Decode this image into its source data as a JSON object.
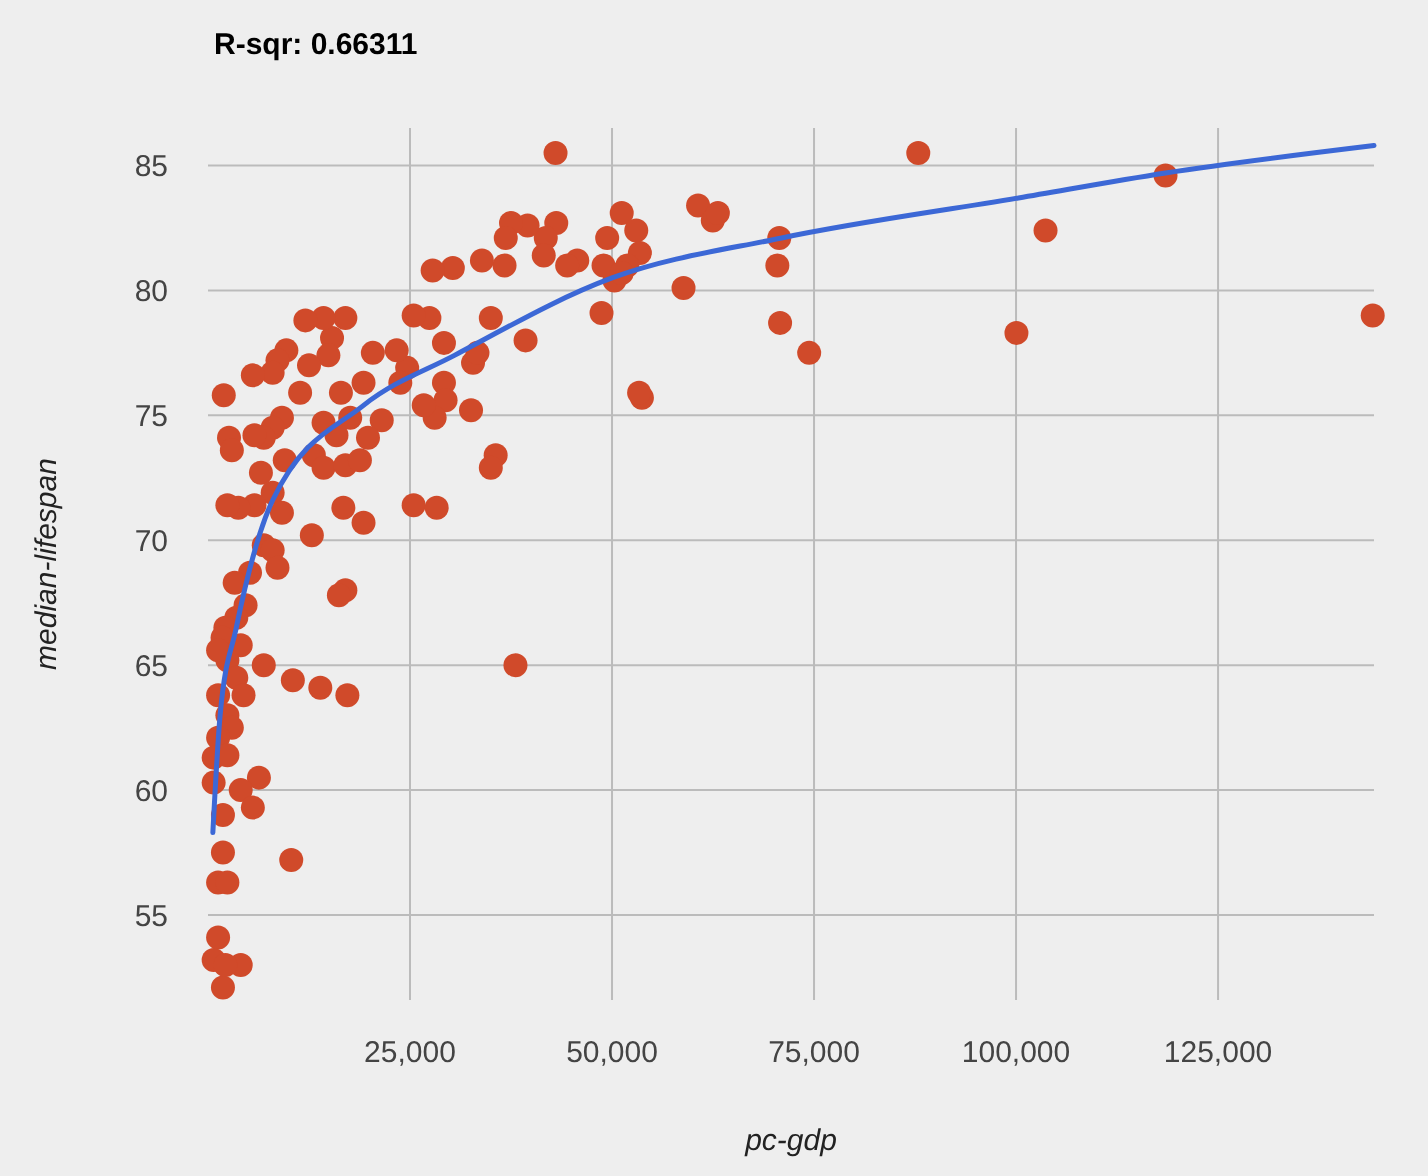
{
  "chart_data": {
    "type": "scatter",
    "title": "R-sqr: 0.66311",
    "xlabel": "pc-gdp",
    "ylabel": "median-lifespan",
    "xlim": [
      0,
      144300
    ],
    "ylim": [
      51.6,
      86.5
    ],
    "xticks": [
      {
        "value": 25000,
        "label": "25,000"
      },
      {
        "value": 50000,
        "label": "50,000"
      },
      {
        "value": 75000,
        "label": "75,000"
      },
      {
        "value": 100000,
        "label": "100,000"
      },
      {
        "value": 125000,
        "label": "125,000"
      }
    ],
    "yticks": [
      55,
      60,
      65,
      70,
      75,
      80,
      85
    ],
    "grid": true,
    "series": [
      {
        "color": "#d04a2a",
        "marker": "circle",
        "x": [
          144140,
          118500,
          103650,
          100050,
          87900,
          74400,
          70800,
          70460,
          70700,
          58850,
          60650,
          62470,
          63100,
          53700,
          53350,
          43010,
          51200,
          53000,
          53450,
          51900,
          50300,
          49400,
          48950,
          48700,
          51200,
          45700,
          44450,
          43100,
          41800,
          41550,
          39550,
          37500,
          36850,
          36700,
          33900,
          39300,
          35000,
          32800,
          33350,
          32550,
          35600,
          35000,
          38050,
          30300,
          27800,
          27400,
          25450,
          24650,
          29200,
          29200,
          29400,
          28050,
          26700,
          25450,
          28300,
          23350,
          20400,
          23800,
          21500,
          19800,
          19250,
          17000,
          15350,
          14900,
          14300,
          12050,
          12500,
          16450,
          17600,
          15900,
          14300,
          13100,
          14300,
          17000,
          18800,
          16750,
          19250,
          17000,
          16200,
          12850,
          10500,
          13900,
          17250,
          10300,
          11400,
          9700,
          8600,
          8000,
          5550,
          9150,
          8000,
          9500,
          6900,
          5750,
          2600,
          2950,
          1950,
          6550,
          8000,
          9150,
          5750,
          3750,
          2400,
          6900,
          8000,
          8600,
          5200,
          3300,
          4650,
          3500,
          2150,
          1800,
          6900,
          4050,
          2400,
          1250,
          3500,
          4400,
          1250,
          2400,
          2950,
          1250,
          700,
          2400,
          6300,
          4050,
          700,
          5550,
          1850,
          1850,
          1250,
          2400,
          1250,
          700,
          4050,
          1850,
          2150
        ],
        "values": [
          79.0,
          84.6,
          82.4,
          78.3,
          85.5,
          77.5,
          78.7,
          81.0,
          82.1,
          80.1,
          83.4,
          82.8,
          83.1,
          75.7,
          75.9,
          85.5,
          83.1,
          82.4,
          81.5,
          81.0,
          80.4,
          82.1,
          81.0,
          79.1,
          80.7,
          81.2,
          81.0,
          82.7,
          82.1,
          81.4,
          82.6,
          82.7,
          82.1,
          81.0,
          81.2,
          78.0,
          78.9,
          77.1,
          77.5,
          75.2,
          73.4,
          72.9,
          65.0,
          80.9,
          80.8,
          78.9,
          79.0,
          76.9,
          77.9,
          76.3,
          75.6,
          74.9,
          75.4,
          71.4,
          71.3,
          77.6,
          77.5,
          76.3,
          74.8,
          74.1,
          76.3,
          78.9,
          78.1,
          77.4,
          78.9,
          78.8,
          77.0,
          75.9,
          74.9,
          74.2,
          74.7,
          73.4,
          72.9,
          73.0,
          73.2,
          71.3,
          70.7,
          68.0,
          67.8,
          70.2,
          64.4,
          64.1,
          63.8,
          57.2,
          75.9,
          77.6,
          77.2,
          76.7,
          76.6,
          74.9,
          74.5,
          73.2,
          74.1,
          74.2,
          74.1,
          73.6,
          75.8,
          72.7,
          71.9,
          71.1,
          71.4,
          71.3,
          71.4,
          69.8,
          69.6,
          68.9,
          68.7,
          68.3,
          67.4,
          66.9,
          66.5,
          66.1,
          65.0,
          65.8,
          65.2,
          65.6,
          64.5,
          63.8,
          63.8,
          63.0,
          62.5,
          62.1,
          61.3,
          61.4,
          60.5,
          60.0,
          60.3,
          59.3,
          59.0,
          57.5,
          56.3,
          56.3,
          54.1,
          53.2,
          53.0,
          52.1,
          53.0
        ]
      },
      {
        "type": "line",
        "color": "#3c68d6",
        "line_style": "solid",
        "x": [
          600,
          1500,
          3500,
          8000,
          19250,
          30500,
          50000,
          71000,
          100300,
          118500,
          144300
        ],
        "values": [
          58.3,
          63.0,
          66.5,
          71.6,
          75.4,
          77.4,
          80.5,
          82.1,
          83.7,
          84.7,
          85.8
        ]
      }
    ]
  }
}
